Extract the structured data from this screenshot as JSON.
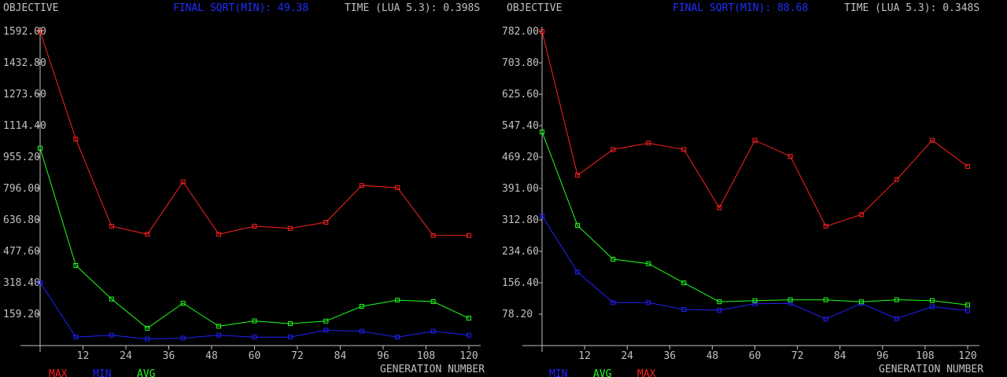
{
  "colors": {
    "background": "#000000",
    "text": "#c0c0c0",
    "axis": "#c0c0c0",
    "max": "#ff2020",
    "min": "#2020ff",
    "avg": "#20ff20",
    "header_accent": "#1f2fff"
  },
  "chart_data": [
    {
      "type": "line",
      "ylabel": "OBJECTIVE",
      "xlabel": "GENERATION NUMBER",
      "header_final": "FINAL SQRT(MIN): 49.38",
      "header_time": "TIME (LUA 5.3): 0.398S",
      "x_ticks": [
        "12",
        "24",
        "36",
        "48",
        "60",
        "72",
        "84",
        "96",
        "108",
        "120"
      ],
      "y_ticks": [
        "1592.00",
        "1432.80",
        "1273.60",
        "1114.40",
        "955.20",
        "796.00",
        "636.80",
        "477.60",
        "318.40",
        "159.20"
      ],
      "ylim": [
        0,
        1592.0
      ],
      "xlim": [
        0,
        120
      ],
      "x": [
        0,
        10,
        20,
        30,
        40,
        50,
        60,
        70,
        80,
        90,
        100,
        110,
        120
      ],
      "legend_order": [
        "MAX",
        "MIN",
        "AVG"
      ],
      "series": [
        {
          "name": "MAX",
          "color": "#ff2020",
          "values": [
            1592,
            1046,
            605,
            564,
            830,
            564,
            605,
            594,
            625,
            811,
            800,
            558,
            558
          ]
        },
        {
          "name": "MIN",
          "color": "#2020ff",
          "values": [
            320,
            43,
            53,
            33,
            38,
            53,
            43,
            43,
            78,
            73,
            43,
            73,
            53
          ]
        },
        {
          "name": "AVG",
          "color": "#20ff20",
          "values": [
            1000,
            406,
            236,
            88,
            215,
            98,
            125,
            111,
            124,
            199,
            230,
            223,
            139
          ]
        }
      ]
    },
    {
      "type": "line",
      "ylabel": "OBJECTIVE",
      "xlabel": "GENERATION NUMBER",
      "header_final": "FINAL SQRT(MIN): 88.68",
      "header_time": "TIME (LUA 5.3): 0.348S",
      "x_ticks": [
        "12",
        "24",
        "36",
        "48",
        "60",
        "72",
        "84",
        "96",
        "108",
        "120"
      ],
      "y_ticks": [
        "782.00",
        "703.80",
        "625.60",
        "547.40",
        "469.20",
        "391.00",
        "312.80",
        "234.60",
        "156.40",
        "78.20"
      ],
      "ylim": [
        0,
        782.0
      ],
      "xlim": [
        0,
        120
      ],
      "x": [
        0,
        10,
        20,
        30,
        40,
        50,
        60,
        70,
        80,
        90,
        100,
        110,
        120
      ],
      "legend_order": [
        "MIN",
        "AVG",
        "MAX"
      ],
      "series": [
        {
          "name": "MIN",
          "color": "#2020ff",
          "values": [
            323,
            183,
            107,
            107,
            90,
            88,
            104,
            105,
            66,
            105,
            67,
            97,
            87
          ]
        },
        {
          "name": "AVG",
          "color": "#20ff20",
          "values": [
            532,
            299,
            215,
            204,
            156,
            109,
            112,
            114,
            114,
            109,
            114,
            112,
            101
          ]
        },
        {
          "name": "MAX",
          "color": "#ff2020",
          "values": [
            782,
            424,
            488,
            504,
            488,
            343,
            511,
            471,
            297,
            326,
            413,
            511,
            446
          ]
        }
      ]
    }
  ]
}
